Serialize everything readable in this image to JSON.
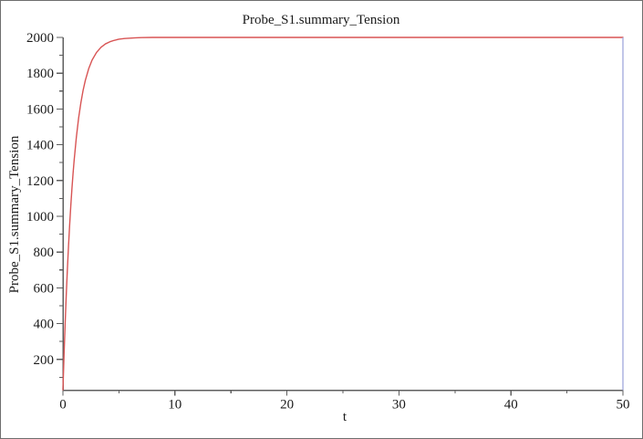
{
  "window": {
    "background": "#ffffff",
    "border_color": "#6e6e6e"
  },
  "chart_data": {
    "type": "line",
    "title": "Probe_S1.summary_Tension",
    "xlabel": "t",
    "ylabel": "Probe_S1.summary_Tension",
    "xlim": [
      0,
      50
    ],
    "ylim": [
      28,
      2000
    ],
    "grid": false,
    "legend": "none",
    "axis_color": "#5f5f5f",
    "text_color": "#1a1a1a",
    "x_major_ticks": [
      0,
      10,
      20,
      30,
      40,
      50
    ],
    "x_minor_ticks": [
      5,
      15,
      25,
      35,
      45
    ],
    "y_major_ticks": [
      200,
      400,
      600,
      800,
      1000,
      1200,
      1400,
      1600,
      1800,
      2000
    ],
    "y_minor_ticks": [
      100,
      300,
      500,
      700,
      900,
      1100,
      1300,
      1500,
      1700,
      1900
    ],
    "series": [
      {
        "name": "Probe_S1.summary_Tension",
        "color": "#d85454",
        "x": [
          0,
          0.1,
          0.2,
          0.3,
          0.4,
          0.5,
          0.6,
          0.7,
          0.8,
          0.9,
          1.0,
          1.2,
          1.4,
          1.6,
          1.8,
          2.0,
          2.3,
          2.6,
          3.0,
          3.4,
          3.8,
          4.2,
          4.6,
          5.0,
          5.5,
          6.0,
          6.5,
          7.0,
          8.0,
          10,
          15,
          20,
          30,
          40,
          50
        ],
        "y": [
          30,
          227,
          404,
          564,
          707,
          836,
          952,
          1057,
          1151,
          1236,
          1312,
          1443,
          1549,
          1634,
          1704,
          1760,
          1825,
          1873,
          1916,
          1945,
          1964,
          1976,
          1984,
          1990,
          1994,
          1996,
          1998,
          1999,
          2000,
          2000,
          2000,
          2000,
          2000,
          2000,
          2000
        ]
      }
    ],
    "end_marker": {
      "t": 50,
      "from_value": 2000,
      "to_value": 28,
      "color": "#a0a8dc"
    }
  }
}
